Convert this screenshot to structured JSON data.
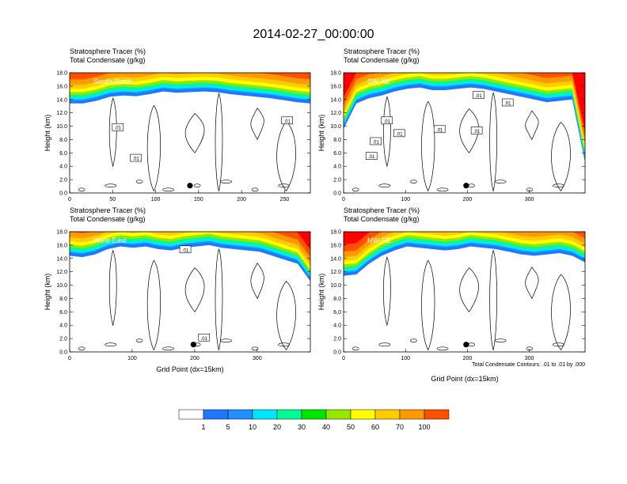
{
  "chart_data": {
    "type": "heatmap",
    "title": "2014-02-27_00:00:00",
    "field_labels": [
      "Stratosphere Tracer   (%)",
      "Total Condensate   (g/kg)"
    ],
    "ylabel": "Height (km)",
    "xlabel": "Grid Point (dx=15km)",
    "ylim": [
      0,
      18
    ],
    "y_ticks": [
      0.0,
      2.0,
      4.0,
      6.0,
      8.0,
      10.0,
      12.0,
      14.0,
      16.0,
      18.0
    ],
    "y_tick_labels": [
      "0.0",
      "2.0",
      "4.0",
      "6.0",
      "8.0",
      "10.0",
      "12.0",
      "14.0",
      "16.0",
      "18.0"
    ],
    "contour_note": "Total Condensate Contours: .01 to .01 by .000",
    "contour_label": ".01",
    "colorbar": {
      "levels": [
        1,
        5,
        10,
        20,
        30,
        40,
        50,
        60,
        70,
        100
      ],
      "colors": [
        "#ffffff",
        "#1e78ff",
        "#1e90ff",
        "#00e6ff",
        "#00fa96",
        "#00e600",
        "#96e600",
        "#ffff00",
        "#ffcc00",
        "#ff9900",
        "#ff5000",
        "#ff0000"
      ]
    },
    "panels": [
      {
        "name": "South-North",
        "xlim": [
          0,
          280
        ],
        "x_ticks": [
          0,
          50,
          100,
          150,
          200,
          250
        ],
        "marker": {
          "x": 140,
          "y": 1.1
        },
        "tracer_base_km": [
          13.8,
          13.8,
          14.2,
          14.8,
          15.0,
          14.9,
          15.2,
          15.6,
          15.4,
          15.5,
          15.6,
          15.5,
          15.2,
          15.0,
          14.8,
          14.6,
          14.3,
          14.0,
          13.8
        ],
        "contour_labels": [
          {
            "x": 56,
            "y": 9.8
          },
          {
            "x": 77,
            "y": 5.2
          },
          {
            "x": 253,
            "y": 10.8
          }
        ]
      },
      {
        "name": "SW-NE",
        "xlim": [
          0,
          390
        ],
        "x_ticks": [
          0,
          100,
          200,
          300
        ],
        "marker": {
          "x": 198,
          "y": 1.1
        },
        "tracer_base_km": [
          10.0,
          13.8,
          14.6,
          15.0,
          15.6,
          16.0,
          16.2,
          15.8,
          15.8,
          16.0,
          16.2,
          16.0,
          15.6,
          15.2,
          14.8,
          14.4,
          14.0,
          14.2,
          14.4,
          5.0
        ],
        "contour_labels": [
          {
            "x": 70,
            "y": 10.8
          },
          {
            "x": 52,
            "y": 7.7
          },
          {
            "x": 90,
            "y": 8.9
          },
          {
            "x": 155,
            "y": 9.5
          },
          {
            "x": 215,
            "y": 9.3
          },
          {
            "x": 218,
            "y": 14.6
          },
          {
            "x": 265,
            "y": 13.5
          },
          {
            "x": 45,
            "y": 5.5
          }
        ]
      },
      {
        "name": "West-East",
        "xlim": [
          0,
          385
        ],
        "x_ticks": [
          0,
          100,
          200,
          300
        ],
        "marker": {
          "x": 198,
          "y": 1.1
        },
        "tracer_base_km": [
          14.8,
          14.6,
          15.0,
          15.8,
          16.2,
          16.0,
          16.2,
          15.8,
          15.6,
          16.0,
          16.2,
          16.4,
          16.0,
          15.8,
          15.6,
          15.4,
          14.8,
          14.2,
          13.6,
          11.0
        ],
        "contour_labels": [
          {
            "x": 185,
            "y": 15.3
          },
          {
            "x": 215,
            "y": 2.1
          }
        ]
      },
      {
        "name": "NW-SE",
        "xlim": [
          0,
          390
        ],
        "x_ticks": [
          0,
          100,
          200,
          300
        ],
        "marker": {
          "x": 198,
          "y": 1.1
        },
        "tracer_base_km": [
          11.8,
          12.0,
          13.6,
          14.8,
          15.6,
          16.2,
          16.0,
          15.8,
          15.6,
          15.8,
          16.2,
          16.0,
          15.8,
          15.4,
          15.0,
          14.8,
          15.0,
          15.2,
          14.8,
          13.8
        ],
        "contour_labels": []
      }
    ]
  }
}
